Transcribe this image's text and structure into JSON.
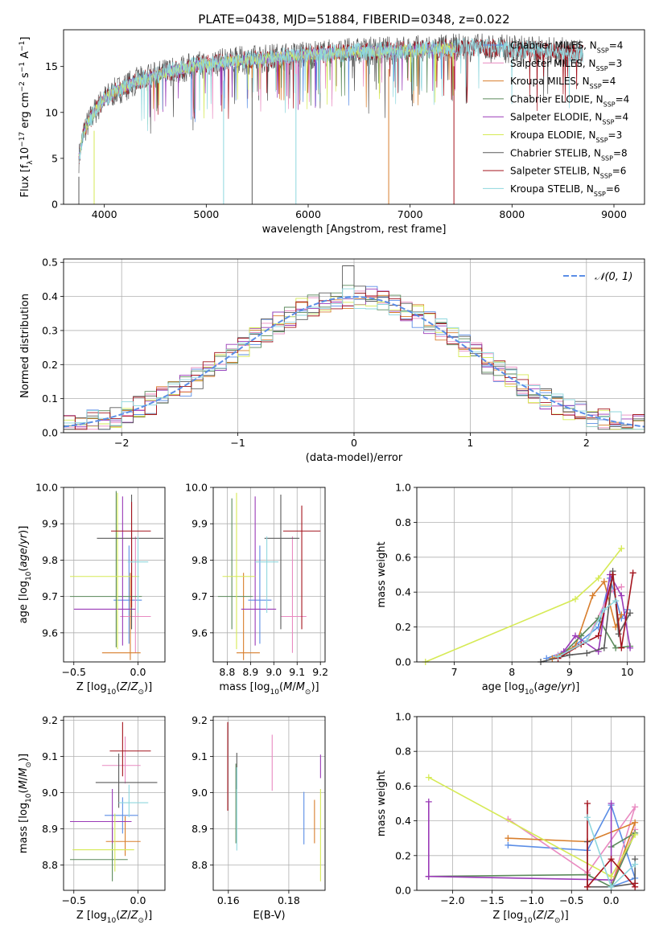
{
  "colors": {
    "Chabrier MILES": "#5b8ee6",
    "Salpeter MILES": "#e98ac1",
    "Kroupa MILES": "#d87e2c",
    "Chabrier ELODIE": "#5b8a5b",
    "Salpeter ELODIE": "#9a3ab7",
    "Kroupa ELODIE": "#d6ea55",
    "Chabrier STELIB": "#5a5a5a",
    "Salpeter STELIB": "#a4141e",
    "Kroupa STELIB": "#8fd7de",
    "normal_curve": "#5b8ee6",
    "grid": "#b0b0b0"
  },
  "chart_data": [
    {
      "type": "line",
      "title": "PLATE=0438, MJD=51884, FIBERID=0348, z=0.022",
      "xlabel": "wavelength [Angstrom, rest frame]",
      "ylabel": "Flux [f_λ10^-17 erg cm^-2 s^-1 A^-1]",
      "xlim": [
        3600,
        9300
      ],
      "ylim": [
        0,
        19
      ],
      "xticks": [
        4000,
        5000,
        6000,
        7000,
        8000,
        9000
      ],
      "yticks": [
        0,
        5,
        10,
        15
      ],
      "grid": false,
      "legend_position": "top-right",
      "series": [
        {
          "name": "Chabrier MILES",
          "nssp": "4"
        },
        {
          "name": "Salpeter MILES",
          "nssp": "3"
        },
        {
          "name": "Kroupa MILES",
          "nssp": "4"
        },
        {
          "name": "Chabrier ELODIE",
          "nssp": "4"
        },
        {
          "name": "Salpeter ELODIE",
          "nssp": "4"
        },
        {
          "name": "Kroupa ELODIE",
          "nssp": "3"
        },
        {
          "name": "Chabrier STELIB",
          "nssp": "8"
        },
        {
          "name": "Salpeter STELIB",
          "nssp": "6"
        },
        {
          "name": "Kroupa STELIB",
          "nssp": "6"
        }
      ],
      "spectrum_envelope": {
        "x": [
          3750,
          3800,
          3900,
          4000,
          4100,
          4200,
          4300,
          4500,
          4700,
          5000,
          5500,
          6000,
          6500,
          7000,
          7400,
          7500,
          8000,
          8500,
          8800
        ],
        "y": [
          5,
          8,
          10,
          11.5,
          12.2,
          12.8,
          13.3,
          14,
          14.6,
          15.3,
          15.8,
          16.3,
          16.6,
          16.8,
          17,
          17.1,
          16.9,
          16.6,
          16.3
        ]
      }
    },
    {
      "type": "histogram",
      "xlabel": "(data-model)/error",
      "ylabel": "Normed distribution",
      "xlim": [
        -2.5,
        2.5
      ],
      "ylim": [
        0,
        0.51
      ],
      "xticks": [
        -2,
        -1,
        0,
        1,
        2
      ],
      "yticks": [
        0.0,
        0.1,
        0.2,
        0.3,
        0.4,
        0.5
      ],
      "grid": true,
      "legend_position": "top-right",
      "reference_curve": {
        "name": "𝒩(0, 1)",
        "mean": 0,
        "sigma": 1
      }
    },
    {
      "type": "scatter",
      "xlabel": "Z [log10(Z/Z⊙)]",
      "ylabel": "age [log10(age/yr)]",
      "xlim": [
        -0.58,
        0.21
      ],
      "ylim": [
        9.52,
        10.0
      ],
      "xticks": [
        -0.5,
        0.0
      ],
      "yticks": [
        9.6,
        9.7,
        9.8,
        9.9,
        10.0
      ],
      "grid": true,
      "points": [
        {
          "series": "Chabrier MILES",
          "x": -0.07,
          "xerr": [
            0.12,
            0.1
          ],
          "y": 9.69,
          "yerr": [
            0.12,
            0.15
          ]
        },
        {
          "series": "Salpeter MILES",
          "x": -0.02,
          "xerr": [
            0.12,
            0.12
          ],
          "y": 9.645,
          "yerr": [
            0.1,
            0.22
          ]
        },
        {
          "series": "Kroupa MILES",
          "x": -0.06,
          "xerr": [
            0.22,
            0.08
          ],
          "y": 9.545,
          "yerr": [
            0.02,
            0.22
          ]
        },
        {
          "series": "Chabrier ELODIE",
          "x": -0.17,
          "xerr": [
            0.36,
            0.2
          ],
          "y": 9.7,
          "yerr": [
            0.14,
            0.29
          ]
        },
        {
          "series": "Salpeter ELODIE",
          "x": -0.12,
          "xerr": [
            0.38,
            0.1
          ],
          "y": 9.665,
          "yerr": [
            0.1,
            0.31
          ]
        },
        {
          "series": "Kroupa ELODIE",
          "x": -0.16,
          "xerr": [
            0.37,
            0.17
          ],
          "y": 9.755,
          "yerr": [
            0.2,
            0.23
          ]
        },
        {
          "series": "Chabrier STELIB",
          "x": -0.05,
          "xerr": [
            0.27,
            0.25
          ],
          "y": 9.86,
          "yerr": [
            0.25,
            0.12
          ]
        },
        {
          "series": "Salpeter STELIB",
          "x": -0.05,
          "xerr": [
            0.16,
            0.15
          ],
          "y": 9.88,
          "yerr": [
            0.21,
            0.08
          ]
        },
        {
          "series": "Kroupa STELIB",
          "x": 0.0,
          "xerr": [
            0.08,
            0.08
          ],
          "y": 9.795,
          "yerr": [
            0.14,
            0.07
          ]
        }
      ]
    },
    {
      "type": "scatter",
      "xlabel": "mass [log10(M/M⊙)]",
      "ylabel": "",
      "xlim": [
        8.74,
        9.22
      ],
      "ylim": [
        9.52,
        10.0
      ],
      "xticks": [
        8.8,
        8.9,
        9.0,
        9.1,
        9.2
      ],
      "yticks": [
        9.6,
        9.7,
        9.8,
        9.9,
        10.0
      ],
      "grid": true,
      "points": [
        {
          "series": "Chabrier MILES",
          "x": 8.94,
          "xerr": [
            0.05,
            0.05
          ],
          "y": 9.69,
          "yerr": [
            0.12,
            0.15
          ]
        },
        {
          "series": "Salpeter MILES",
          "x": 9.08,
          "xerr": [
            0.05,
            0.06
          ],
          "y": 9.645,
          "yerr": [
            0.1,
            0.22
          ]
        },
        {
          "series": "Kroupa MILES",
          "x": 8.87,
          "xerr": [
            0.03,
            0.07
          ],
          "y": 9.545,
          "yerr": [
            0.02,
            0.22
          ]
        },
        {
          "series": "Chabrier ELODIE",
          "x": 8.82,
          "xerr": [
            0.06,
            0.09
          ],
          "y": 9.7,
          "yerr": [
            0.09,
            0.27
          ]
        },
        {
          "series": "Salpeter ELODIE",
          "x": 8.92,
          "xerr": [
            0.06,
            0.09
          ],
          "y": 9.665,
          "yerr": [
            0.1,
            0.31
          ]
        },
        {
          "series": "Kroupa ELODIE",
          "x": 8.84,
          "xerr": [
            0.06,
            0.08
          ],
          "y": 9.755,
          "yerr": [
            0.2,
            0.23
          ]
        },
        {
          "series": "Chabrier STELIB",
          "x": 9.03,
          "xerr": [
            0.07,
            0.08
          ],
          "y": 9.86,
          "yerr": [
            0.25,
            0.12
          ]
        },
        {
          "series": "Salpeter STELIB",
          "x": 9.12,
          "xerr": [
            0.08,
            0.08
          ],
          "y": 9.88,
          "yerr": [
            0.27,
            0.07
          ]
        },
        {
          "series": "Kroupa STELIB",
          "x": 8.97,
          "xerr": [
            0.05,
            0.05
          ],
          "y": 9.795,
          "yerr": [
            0.14,
            0.07
          ]
        }
      ]
    },
    {
      "type": "line",
      "xlabel": "age [log10(age/yr)]",
      "ylabel": "mass weight",
      "xlim": [
        6.35,
        10.3
      ],
      "ylim": [
        0,
        1
      ],
      "xticks": [
        7,
        8,
        9,
        10
      ],
      "yticks": [
        0.0,
        0.2,
        0.4,
        0.6,
        0.8,
        1.0
      ],
      "grid": true,
      "series": [
        {
          "name": "Chabrier MILES",
          "x": [
            8.6,
            9.0,
            9.5,
            9.7,
            9.9,
            10.0
          ],
          "y": [
            0.02,
            0.07,
            0.2,
            0.48,
            0.25,
            0.3
          ]
        },
        {
          "name": "Salpeter MILES",
          "x": [
            8.8,
            9.3,
            9.7,
            9.9
          ],
          "y": [
            0.04,
            0.12,
            0.4,
            0.43
          ]
        },
        {
          "name": "Kroupa MILES",
          "x": [
            8.7,
            9.1,
            9.4,
            9.6,
            9.8,
            9.9
          ],
          "y": [
            0.02,
            0.09,
            0.38,
            0.46,
            0.2,
            0.27
          ]
        },
        {
          "name": "Chabrier ELODIE",
          "x": [
            8.9,
            9.2,
            9.5,
            9.8,
            10.05
          ],
          "y": [
            0.05,
            0.15,
            0.25,
            0.08,
            0.09
          ]
        },
        {
          "name": "Salpeter ELODIE",
          "x": [
            8.9,
            9.1,
            9.5,
            9.7,
            9.9,
            10.05
          ],
          "y": [
            0.06,
            0.15,
            0.06,
            0.5,
            0.38,
            0.08
          ]
        },
        {
          "name": "Kroupa ELODIE",
          "x": [
            6.5,
            9.1,
            9.5,
            9.9
          ],
          "y": [
            0.0,
            0.36,
            0.48,
            0.65
          ]
        },
        {
          "name": "Chabrier STELIB",
          "x": [
            8.5,
            9.0,
            9.3,
            9.6,
            9.75,
            9.85,
            10.05
          ],
          "y": [
            0.0,
            0.04,
            0.05,
            0.08,
            0.52,
            0.16,
            0.28
          ]
        },
        {
          "name": "Salpeter STELIB",
          "x": [
            8.8,
            9.2,
            9.5,
            9.75,
            9.9,
            10.1
          ],
          "y": [
            0.02,
            0.1,
            0.15,
            0.5,
            0.08,
            0.51
          ]
        },
        {
          "name": "Kroupa STELIB",
          "x": [
            8.8,
            9.3,
            9.6,
            9.8
          ],
          "y": [
            0.03,
            0.12,
            0.3,
            0.35
          ]
        }
      ]
    },
    {
      "type": "scatter",
      "xlabel": "Z [log10(Z/Z⊙)]",
      "ylabel": "mass [log10(M/M⊙)]",
      "xlim": [
        -0.58,
        0.21
      ],
      "ylim": [
        8.73,
        9.21
      ],
      "xticks": [
        -0.5,
        0.0
      ],
      "yticks": [
        8.8,
        8.9,
        9.0,
        9.1,
        9.2
      ],
      "grid": true,
      "points": [
        {
          "series": "Chabrier MILES",
          "x": -0.12,
          "xerr": [
            0.14,
            0.12
          ],
          "y": 8.937,
          "yerr": [
            0.05,
            0.05
          ]
        },
        {
          "series": "Salpeter MILES",
          "x": -0.1,
          "xerr": [
            0.18,
            0.12
          ],
          "y": 9.075,
          "yerr": [
            0.05,
            0.08
          ]
        },
        {
          "series": "Kroupa MILES",
          "x": -0.1,
          "xerr": [
            0.15,
            0.12
          ],
          "y": 8.865,
          "yerr": [
            0.04,
            0.07
          ]
        },
        {
          "series": "Chabrier ELODIE",
          "x": -0.2,
          "xerr": [
            0.33,
            0.12
          ],
          "y": 8.815,
          "yerr": [
            0.06,
            0.09
          ]
        },
        {
          "series": "Salpeter ELODIE",
          "x": -0.2,
          "xerr": [
            0.33,
            0.15
          ],
          "y": 8.92,
          "yerr": [
            0.06,
            0.09
          ]
        },
        {
          "series": "Kroupa ELODIE",
          "x": -0.18,
          "xerr": [
            0.33,
            0.15
          ],
          "y": 8.842,
          "yerr": [
            0.06,
            0.1
          ]
        },
        {
          "series": "Chabrier STELIB",
          "x": -0.15,
          "xerr": [
            0.18,
            0.3
          ],
          "y": 9.028,
          "yerr": [
            0.07,
            0.08
          ]
        },
        {
          "series": "Salpeter STELIB",
          "x": -0.12,
          "xerr": [
            0.1,
            0.22
          ],
          "y": 9.115,
          "yerr": [
            0.07,
            0.08
          ]
        },
        {
          "series": "Kroupa STELIB",
          "x": -0.07,
          "xerr": [
            0.08,
            0.15
          ],
          "y": 8.972,
          "yerr": [
            0.04,
            0.05
          ]
        }
      ]
    },
    {
      "type": "scatter",
      "xlabel": "E(B-V)",
      "ylabel": "",
      "xlim": [
        0.155,
        0.192
      ],
      "ylim": [
        8.73,
        9.21
      ],
      "xticks": [
        0.16,
        0.18
      ],
      "yticks": [
        8.8,
        8.9,
        9.0,
        9.1,
        9.2
      ],
      "grid": true,
      "points": [
        {
          "series": "Chabrier MILES",
          "x": 0.185,
          "y": 8.937,
          "yerr": [
            0.08,
            0.065
          ]
        },
        {
          "series": "Salpeter MILES",
          "x": 0.1745,
          "y": 9.075,
          "yerr": [
            0.07,
            0.085
          ]
        },
        {
          "series": "Kroupa MILES",
          "x": 0.1885,
          "y": 8.92,
          "yerr": [
            0.06,
            0.06
          ]
        },
        {
          "series": "Chabrier ELODIE",
          "x": 0.1625,
          "y": 8.96,
          "yerr": [
            0.1,
            0.12
          ]
        },
        {
          "series": "Salpeter ELODIE",
          "x": 0.1905,
          "y": 9.07,
          "yerr": [
            0.03,
            0.035
          ]
        },
        {
          "series": "Kroupa ELODIE",
          "x": 0.1905,
          "y": 8.88,
          "yerr": [
            0.125,
            0.13
          ]
        },
        {
          "series": "Chabrier STELIB",
          "x": 0.1628,
          "y": 9.06,
          "yerr": [
            0.05,
            0.05
          ]
        },
        {
          "series": "Salpeter STELIB",
          "x": 0.1598,
          "y": 9.07,
          "yerr": [
            0.12,
            0.125
          ]
        },
        {
          "series": "Kroupa STELIB",
          "x": 0.1628,
          "y": 8.96,
          "yerr": [
            0.12,
            0.11
          ]
        }
      ]
    },
    {
      "type": "line",
      "xlabel": "Z [log10(Z/Z⊙)]",
      "ylabel": "mass weight",
      "xlim": [
        -2.45,
        0.42
      ],
      "ylim": [
        0,
        1
      ],
      "xticks": [
        -2.0,
        -1.5,
        -1.0,
        -0.5,
        0.0
      ],
      "yticks": [
        0.0,
        0.2,
        0.4,
        0.6,
        0.8,
        1.0
      ],
      "grid": true,
      "series": [
        {
          "name": "Chabrier MILES",
          "x": [
            -1.3,
            -0.3,
            0.0,
            0.3,
            0.0
          ],
          "y": [
            0.26,
            0.23,
            0.49,
            0.07,
            0.02
          ]
        },
        {
          "name": "Salpeter MILES",
          "x": [
            -1.3,
            -0.3,
            0.3,
            0.0,
            0.3
          ],
          "y": [
            0.41,
            0.1,
            0.48,
            0.02,
            0.35
          ]
        },
        {
          "name": "Kroupa MILES",
          "x": [
            -1.3,
            -0.3,
            0.3,
            0.0
          ],
          "y": [
            0.3,
            0.28,
            0.39,
            0.02
          ]
        },
        {
          "name": "Chabrier ELODIE",
          "x": [
            -2.3,
            -0.3,
            0.0,
            0.3,
            0.0
          ],
          "y": [
            0.08,
            0.09,
            0.02,
            0.33,
            0.25
          ]
        },
        {
          "name": "Salpeter ELODIE",
          "x": [
            -2.3,
            -2.3,
            -2.3,
            0.0,
            0.0
          ],
          "y": [
            0.51,
            0.08,
            0.08,
            0.06,
            0.5
          ]
        },
        {
          "name": "Kroupa ELODIE",
          "x": [
            -2.3,
            0.0,
            0.3
          ],
          "y": [
            0.65,
            0.08,
            0.32
          ]
        },
        {
          "name": "Chabrier STELIB",
          "x": [
            -0.3,
            -0.3,
            0.0,
            0.3,
            0.3
          ],
          "y": [
            0.28,
            0.02,
            0.02,
            0.04,
            0.18
          ]
        },
        {
          "name": "Salpeter STELIB",
          "x": [
            -0.3,
            -0.3,
            0.0,
            0.3,
            0.3
          ],
          "y": [
            0.5,
            0.02,
            0.18,
            0.02,
            0.04
          ]
        },
        {
          "name": "Kroupa STELIB",
          "x": [
            -0.3,
            0.0,
            0.3
          ],
          "y": [
            0.42,
            0.02,
            0.15
          ]
        }
      ]
    }
  ]
}
